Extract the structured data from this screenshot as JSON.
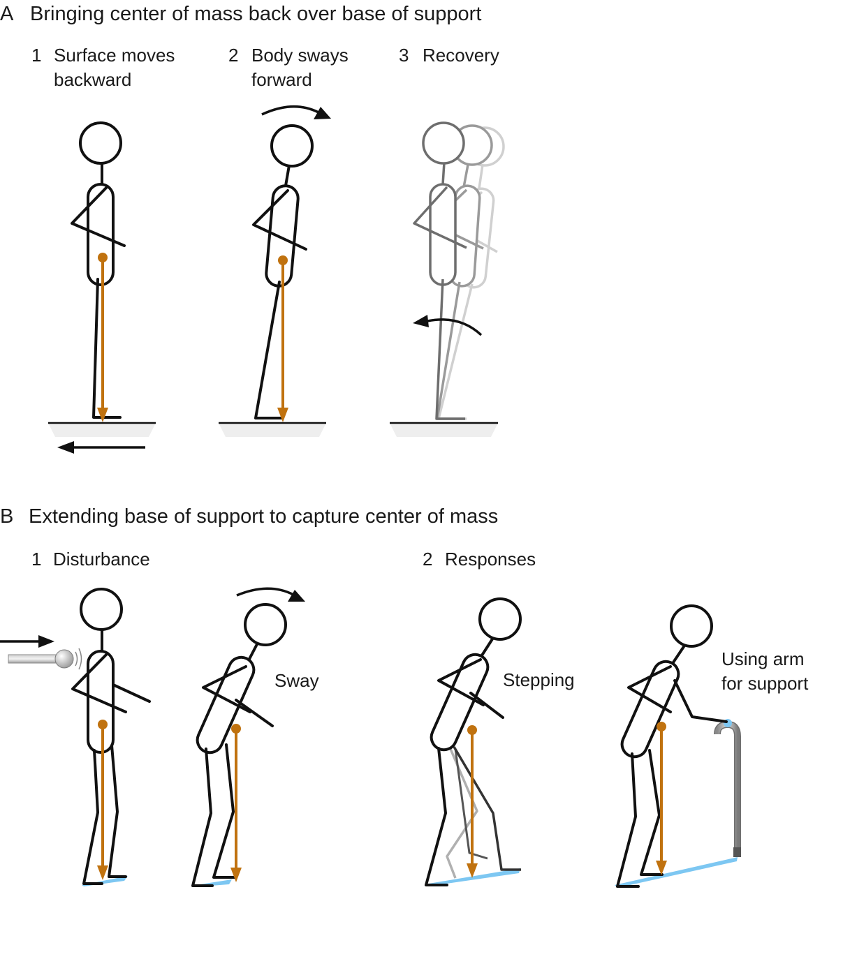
{
  "panel_a": {
    "letter": "A",
    "title": "Bringing center of mass back over base of support",
    "steps": [
      {
        "num": "1",
        "line1": "Surface moves",
        "line2": "backward"
      },
      {
        "num": "2",
        "line1": "Body sways",
        "line2": "forward"
      },
      {
        "num": "3",
        "line1": "Recovery",
        "line2": ""
      }
    ]
  },
  "panel_b": {
    "letter": "B",
    "title": "Extending base of support to capture center of mass",
    "steps": [
      {
        "num": "1",
        "label": "Disturbance"
      },
      {
        "num": "2",
        "label": "Responses"
      }
    ],
    "annotations": {
      "sway": "Sway",
      "stepping": "Stepping",
      "arm_line1": "Using arm",
      "arm_line2": "for support"
    }
  },
  "colors": {
    "center_of_mass": "#c0720f",
    "base_of_support": "#7dc7f2",
    "platform": "#eeeeee",
    "figure_stroke": "#111111"
  },
  "icons": [
    "rotation-arrow-icon",
    "push-rod-icon",
    "cane-icon",
    "motion-arrow-icon"
  ]
}
